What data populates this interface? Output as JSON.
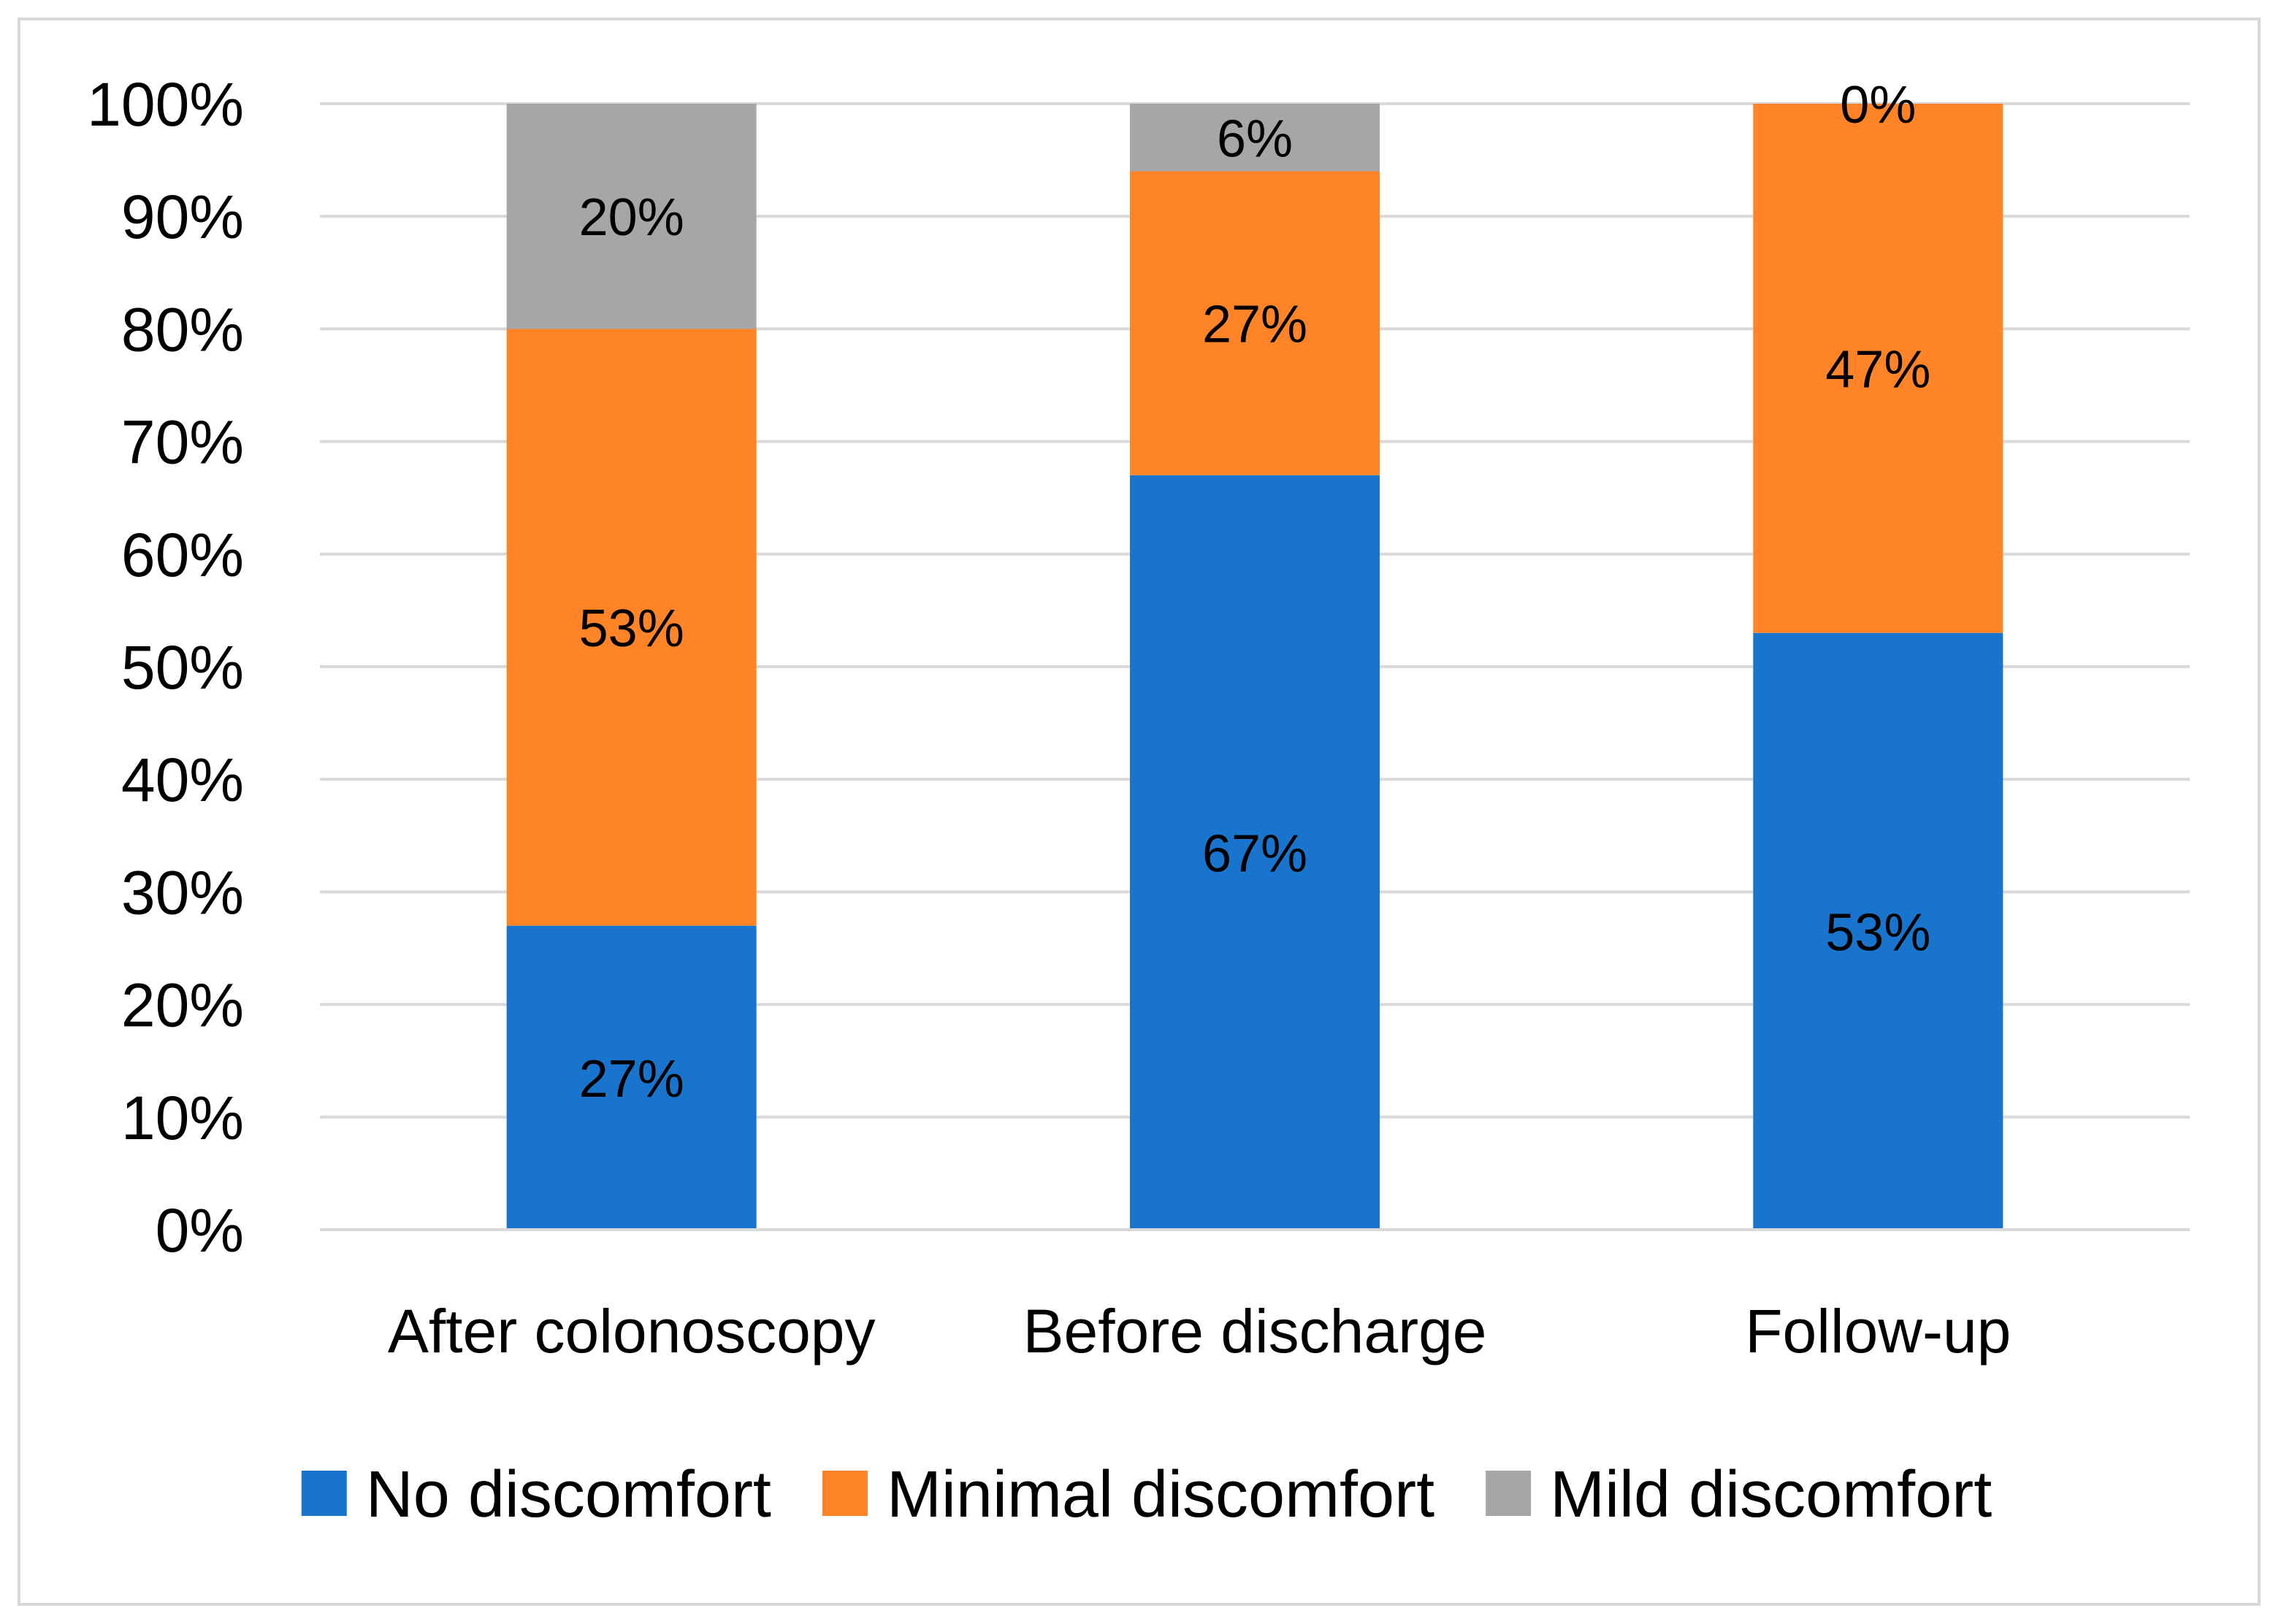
{
  "chart_data": {
    "type": "bar",
    "stacked": true,
    "title": "",
    "xlabel": "",
    "ylabel": "",
    "ylim": [
      0,
      100
    ],
    "y_tick_values": [
      0,
      10,
      20,
      30,
      40,
      50,
      60,
      70,
      80,
      90,
      100
    ],
    "y_tick_labels": [
      "0%",
      "10%",
      "20%",
      "30%",
      "40%",
      "50%",
      "60%",
      "70%",
      "80%",
      "90%",
      "100%"
    ],
    "grid": true,
    "legend_position": "bottom",
    "categories": [
      "After colonoscopy",
      "Before discharge",
      "Follow-up"
    ],
    "series": [
      {
        "name": "No discomfort",
        "color": "#1874CD",
        "values": [
          27,
          67,
          53
        ],
        "labels": [
          "27%",
          "67%",
          "53%"
        ]
      },
      {
        "name": "Minimal discomfort",
        "color": "#FF8427",
        "values": [
          53,
          27,
          47
        ],
        "labels": [
          "53%",
          "27%",
          "47%"
        ]
      },
      {
        "name": "Mild discomfort",
        "color": "#A6A6A6",
        "values": [
          20,
          6,
          0
        ],
        "labels": [
          "20%",
          "6%",
          "0%"
        ]
      }
    ]
  }
}
